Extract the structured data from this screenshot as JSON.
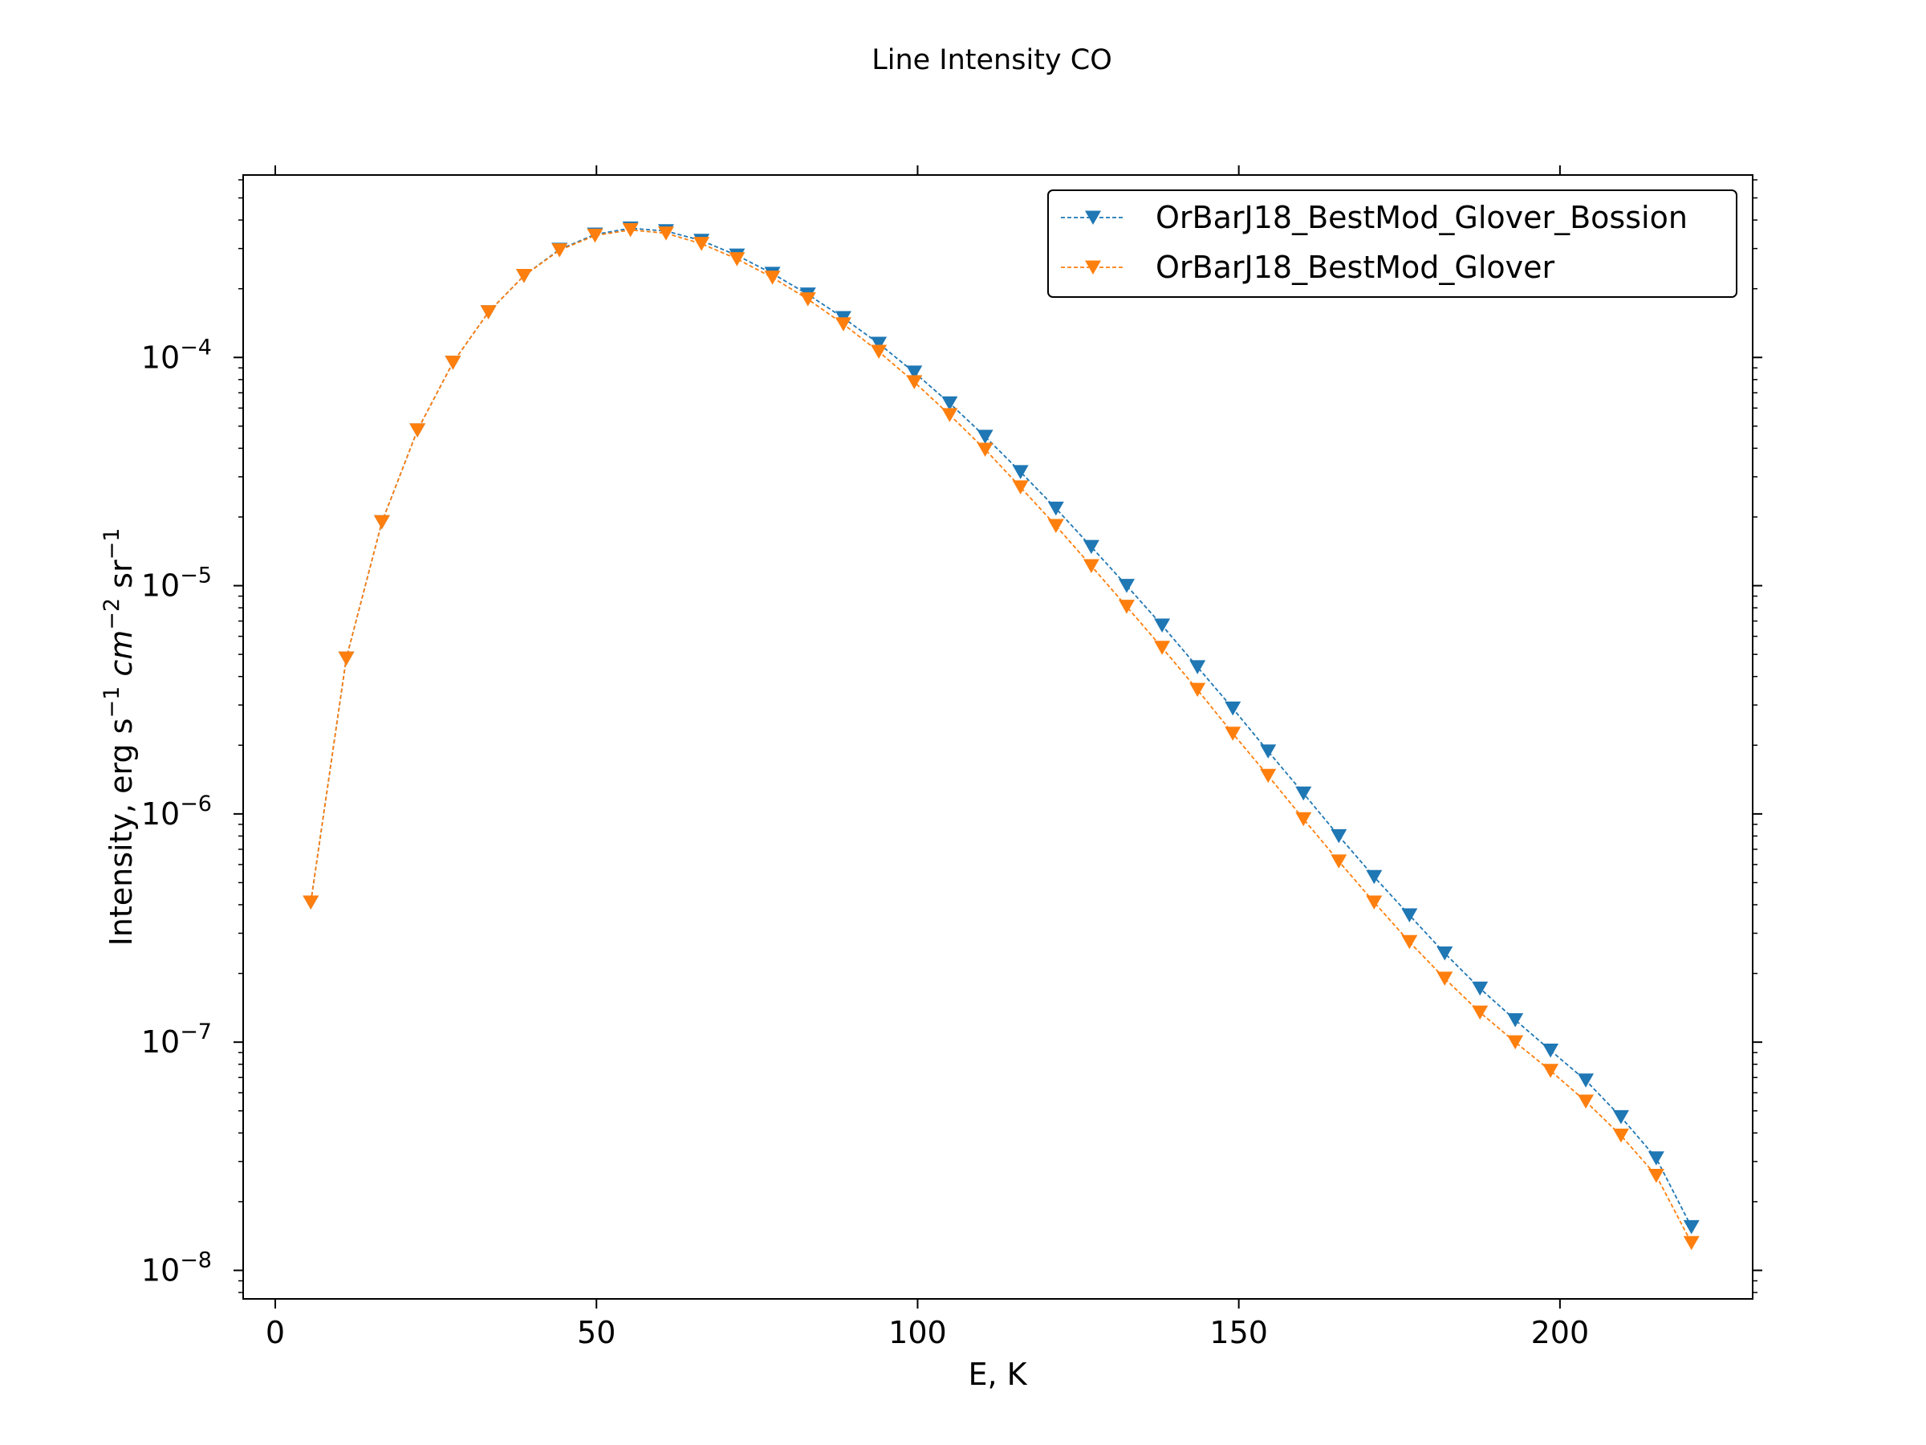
{
  "chart_data": {
    "type": "line",
    "title": "Line Intensity CO",
    "xlabel": "E, K",
    "ylabel": "Intensity, erg s⁻¹ cm⁻² sr⁻¹",
    "xlim": [
      -5,
      230
    ],
    "ylim": [
      7.5e-09,
      0.00063
    ],
    "yscale": "log",
    "grid": false,
    "legend_position": "top-right",
    "xticks": [
      {
        "value": 0,
        "label": "0"
      },
      {
        "value": 50,
        "label": "50"
      },
      {
        "value": 100,
        "label": "100"
      },
      {
        "value": 150,
        "label": "150"
      },
      {
        "value": 200,
        "label": "200"
      }
    ],
    "yticks": [
      {
        "value": 1e-08,
        "base": "10",
        "exp": "−8"
      },
      {
        "value": 1e-07,
        "base": "10",
        "exp": "−7"
      },
      {
        "value": 1e-06,
        "base": "10",
        "exp": "−6"
      },
      {
        "value": 1e-05,
        "base": "10",
        "exp": "−5"
      },
      {
        "value": 0.0001,
        "base": "10",
        "exp": "−4"
      }
    ],
    "series": [
      {
        "name": "OrBarJ18_BestMod_Glover_Bossion",
        "color": "#1f77b4",
        "x": [
          5.53,
          11.06,
          16.6,
          22.13,
          27.66,
          33.19,
          38.72,
          44.25,
          49.78,
          55.3,
          60.83,
          66.35,
          71.88,
          77.4,
          82.92,
          88.44,
          93.96,
          99.48,
          104.99,
          110.51,
          116.02,
          121.53,
          127.04,
          132.55,
          138.06,
          143.57,
          149.07,
          154.57,
          160.07,
          165.57,
          171.07,
          176.57,
          182.06,
          187.55,
          193.04,
          198.53,
          204.02,
          209.5,
          214.99,
          220.47
        ],
        "y": [
          4.1e-07,
          4.8e-06,
          1.9e-05,
          4.8e-05,
          9.5e-05,
          0.000158,
          0.000228,
          0.000297,
          0.000346,
          0.000368,
          0.000358,
          0.000325,
          0.00028,
          0.000233,
          0.000189,
          0.000149,
          0.000115,
          8.6e-05,
          6.3e-05,
          4.5e-05,
          3.15e-05,
          2.18e-05,
          1.48e-05,
          1e-05,
          6.7e-06,
          4.4e-06,
          2.9e-06,
          1.88e-06,
          1.23e-06,
          8e-07,
          5.3e-07,
          3.6e-07,
          2.45e-07,
          1.72e-07,
          1.25e-07,
          9.2e-08,
          6.8e-08,
          4.7e-08,
          3.1e-08,
          1.55e-08
        ]
      },
      {
        "name": "OrBarJ18_BestMod_Glover",
        "color": "#ff7f0e",
        "x": [
          5.53,
          11.06,
          16.6,
          22.13,
          27.66,
          33.19,
          38.72,
          44.25,
          49.78,
          55.3,
          60.83,
          66.35,
          71.88,
          77.4,
          82.92,
          88.44,
          93.96,
          99.48,
          104.99,
          110.51,
          116.02,
          121.53,
          127.04,
          132.55,
          138.06,
          143.57,
          149.07,
          154.57,
          160.07,
          165.57,
          171.07,
          176.57,
          182.06,
          187.55,
          193.04,
          198.53,
          204.02,
          209.5,
          214.99,
          220.47
        ],
        "y": [
          4.1e-07,
          4.8e-06,
          1.9e-05,
          4.8e-05,
          9.5e-05,
          0.000158,
          0.000228,
          0.000295,
          0.000342,
          0.000362,
          0.00035,
          0.000315,
          0.00027,
          0.000224,
          0.00018,
          0.00014,
          0.000106,
          7.8e-05,
          5.6e-05,
          3.95e-05,
          2.7e-05,
          1.83e-05,
          1.22e-05,
          8.1e-06,
          5.35e-06,
          3.5e-06,
          2.25e-06,
          1.47e-06,
          9.5e-07,
          6.2e-07,
          4.1e-07,
          2.75e-07,
          1.9e-07,
          1.35e-07,
          1e-07,
          7.5e-08,
          5.5e-08,
          3.9e-08,
          2.6e-08,
          1.32e-08
        ]
      }
    ]
  }
}
